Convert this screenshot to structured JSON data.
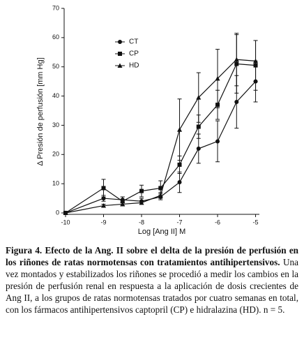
{
  "chart_data": {
    "type": "line",
    "y_label": "Δ Presión de perfusión [mm Hg]",
    "x_label": "Log [Ang II] M",
    "x": [
      -10,
      -9,
      -8.5,
      -8,
      -7.5,
      -7,
      -6.5,
      -6,
      -5.5,
      -5
    ],
    "series": [
      {
        "name": "CT",
        "color": "#111111",
        "marker": "circle",
        "values": [
          0,
          5,
          4.5,
          4,
          5.5,
          10.5,
          22,
          24.5,
          38,
          45
        ],
        "errors": [
          0,
          1,
          1,
          1,
          1,
          3.5,
          5,
          7,
          9,
          7
        ]
      },
      {
        "name": "CP",
        "color": "#111111",
        "marker": "square",
        "values": [
          0,
          8.5,
          4,
          7.5,
          8.5,
          16.5,
          29.5,
          37,
          51,
          50.5
        ],
        "errors": [
          0,
          3,
          1.5,
          2,
          2.5,
          3,
          4,
          5,
          10,
          8.5
        ]
      },
      {
        "name": "HD",
        "color": "#111111",
        "marker": "triangle",
        "values": [
          0,
          2.5,
          3,
          3.5,
          6,
          28.5,
          39.5,
          46,
          52.5,
          52
        ],
        "errors": [
          0,
          0.5,
          0.5,
          0.5,
          1,
          10.5,
          8.5,
          10,
          9,
          7
        ]
      }
    ],
    "xlim": [
      -10,
      -4.9
    ],
    "xticks": [
      -10,
      -9,
      -8,
      -7,
      -6,
      -5
    ],
    "ylim": [
      0,
      70
    ],
    "yticks": [
      0,
      10,
      20,
      30,
      40,
      50,
      60,
      70
    ],
    "legend": "upper-left"
  },
  "caption": {
    "bold": "Figura 4. Efecto de la Ang. II sobre el delta de la presión de perfusión en los riñones de ratas normotensas con tratamientos antihipertensivos.",
    "text": "Una vez montados y estabilizados los riñones se procedió a medir los cambios en la presión de perfusión renal en respuesta a la aplicación de dosis crecientes de Ang II, a los grupos de ratas normotensas tratados por cuatro semanas en total, con los fármacos antihipertensivos captopril (CP) e hidralazina (HD). n = 5."
  }
}
